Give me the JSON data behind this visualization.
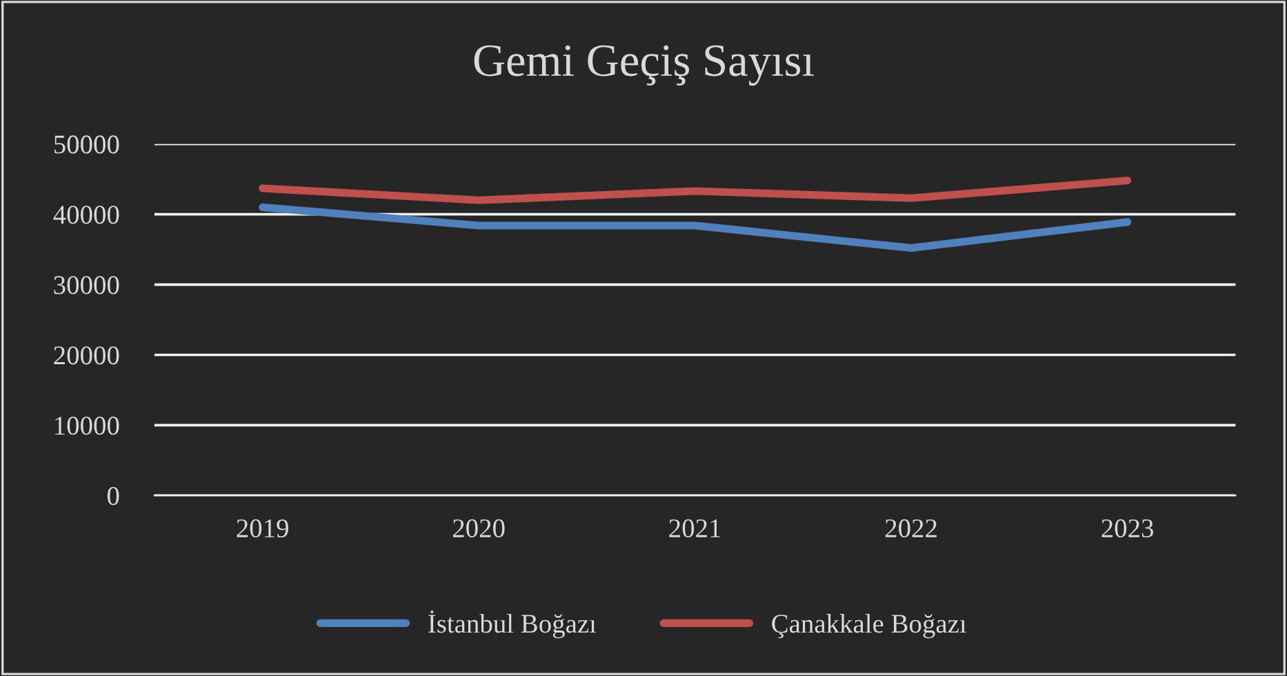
{
  "chart_data": {
    "type": "line",
    "title": "Gemi Geçiş Sayısı",
    "categories": [
      "2019",
      "2020",
      "2021",
      "2022",
      "2023"
    ],
    "series": [
      {
        "name": "İstanbul Boğazı",
        "color": "#4f81bd",
        "values": [
          41000,
          38400,
          38400,
          35200,
          38900
        ]
      },
      {
        "name": "Çanakkale Boğazı",
        "color": "#c0504d",
        "values": [
          43700,
          42000,
          43300,
          42300,
          44800
        ]
      }
    ],
    "ylim": [
      0,
      50000
    ],
    "yticks": [
      0,
      10000,
      20000,
      30000,
      40000,
      50000
    ],
    "grid": "y",
    "legend": "bottom",
    "marker": "none",
    "line_style": "solid"
  }
}
